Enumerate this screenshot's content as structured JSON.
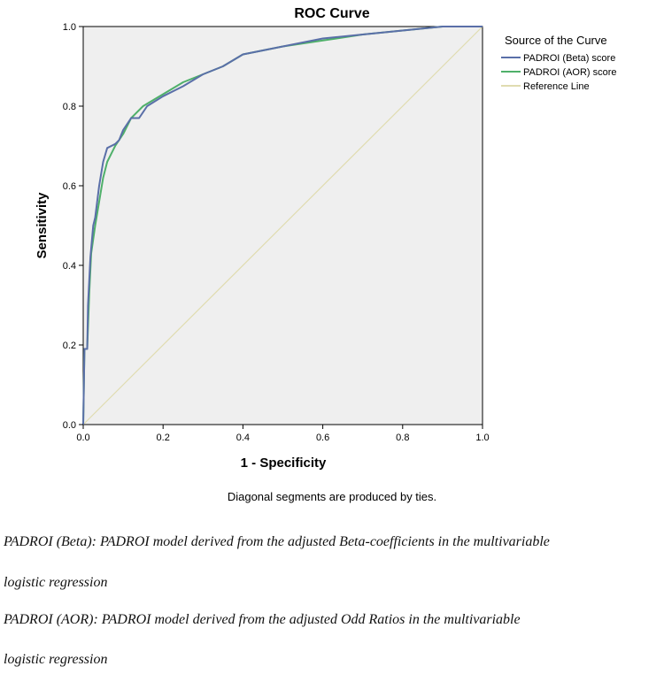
{
  "chart_data": {
    "type": "line",
    "title": "ROC Curve",
    "xlabel": "1 - Specificity",
    "ylabel": "Sensitivity",
    "xlim": [
      0,
      1
    ],
    "ylim": [
      0,
      1
    ],
    "x_ticks": [
      "0.0",
      "0.2",
      "0.4",
      "0.6",
      "0.8",
      "1.0"
    ],
    "y_ticks": [
      "0.0",
      "0.2",
      "0.4",
      "0.6",
      "0.8",
      "1.0"
    ],
    "grid": false,
    "background": "#efefef",
    "legend": {
      "title": "Source of the Curve",
      "placement": "right"
    },
    "footnote": "Diagonal segments are produced by ties.",
    "series": [
      {
        "name": "PADROI (Beta) score",
        "color": "#5a6fa8",
        "points": [
          [
            0,
            0
          ],
          [
            0.003,
            0.19
          ],
          [
            0.01,
            0.19
          ],
          [
            0.012,
            0.3
          ],
          [
            0.018,
            0.42
          ],
          [
            0.025,
            0.5
          ],
          [
            0.03,
            0.52
          ],
          [
            0.04,
            0.6
          ],
          [
            0.05,
            0.66
          ],
          [
            0.06,
            0.695
          ],
          [
            0.08,
            0.705
          ],
          [
            0.09,
            0.715
          ],
          [
            0.1,
            0.74
          ],
          [
            0.12,
            0.77
          ],
          [
            0.14,
            0.77
          ],
          [
            0.16,
            0.8
          ],
          [
            0.2,
            0.825
          ],
          [
            0.25,
            0.85
          ],
          [
            0.3,
            0.88
          ],
          [
            0.35,
            0.9
          ],
          [
            0.4,
            0.93
          ],
          [
            0.5,
            0.95
          ],
          [
            0.6,
            0.97
          ],
          [
            0.7,
            0.98
          ],
          [
            0.8,
            0.99
          ],
          [
            0.9,
            1.0
          ],
          [
            1,
            1
          ]
        ]
      },
      {
        "name": "PADROI (AOR) score",
        "color": "#4fb06a",
        "points": [
          [
            0,
            0
          ],
          [
            0.003,
            0.19
          ],
          [
            0.01,
            0.19
          ],
          [
            0.015,
            0.33
          ],
          [
            0.02,
            0.43
          ],
          [
            0.03,
            0.5
          ],
          [
            0.04,
            0.56
          ],
          [
            0.05,
            0.62
          ],
          [
            0.06,
            0.66
          ],
          [
            0.08,
            0.7
          ],
          [
            0.1,
            0.73
          ],
          [
            0.12,
            0.77
          ],
          [
            0.15,
            0.8
          ],
          [
            0.2,
            0.83
          ],
          [
            0.25,
            0.86
          ],
          [
            0.3,
            0.88
          ],
          [
            0.35,
            0.9
          ],
          [
            0.4,
            0.93
          ],
          [
            0.5,
            0.95
          ],
          [
            0.6,
            0.965
          ],
          [
            0.7,
            0.98
          ],
          [
            0.8,
            0.99
          ],
          [
            0.9,
            1.0
          ],
          [
            1,
            1
          ]
        ]
      },
      {
        "name": "Reference Line",
        "color": "#e0dcb0",
        "points": [
          [
            0,
            0
          ],
          [
            1,
            1
          ]
        ]
      }
    ]
  },
  "captions": [
    "PADROI (Beta): PADROI model derived from the adjusted Beta-coefficients in the multivariable",
    "logistic regression",
    "PADROI (AOR): PADROI model derived from the adjusted Odd Ratios in the multivariable",
    "logistic regression"
  ]
}
